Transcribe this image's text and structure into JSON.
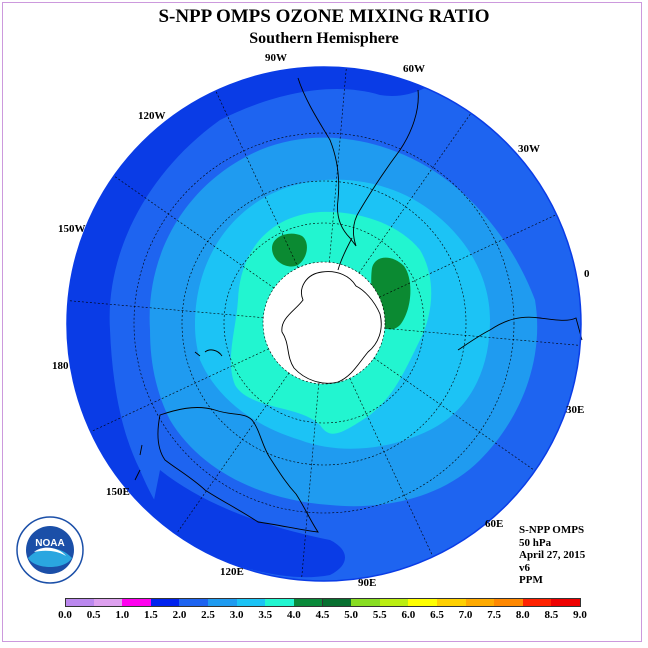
{
  "title": "S-NPP OMPS OZONE MIXING RATIO",
  "subtitle": "Southern Hemisphere",
  "map": {
    "projection": "south-polar-stereographic",
    "longitude_labels": [
      {
        "text": "90W"
      },
      {
        "text": "60W"
      },
      {
        "text": "30W"
      },
      {
        "text": "0"
      },
      {
        "text": "30E"
      },
      {
        "text": "60E"
      },
      {
        "text": "90E"
      },
      {
        "text": "120E"
      },
      {
        "text": "150E"
      },
      {
        "text": "180"
      },
      {
        "text": "150W"
      },
      {
        "text": "120W"
      }
    ],
    "colors": {
      "ocean_outer": "#0a3ce6",
      "band_2_0": "#1e64f0",
      "band_2_5": "#1f9bf0",
      "band_3_0": "#1cc3f5",
      "band_3_5": "#22f5d0",
      "band_4_0": "#0b8a32",
      "pole_cap": "#ffffff"
    }
  },
  "info": {
    "instrument": "S-NPP OMPS",
    "level": "50 hPa",
    "date": "April 27, 2015",
    "version": "v6",
    "units": "PPM"
  },
  "logo": {
    "name": "NOAA",
    "text": "NOAA"
  },
  "colorbar": {
    "labels": [
      "0.0",
      "0.5",
      "1.0",
      "1.5",
      "2.0",
      "2.5",
      "3.0",
      "3.5",
      "4.0",
      "4.5",
      "5.0",
      "5.5",
      "6.0",
      "6.5",
      "7.0",
      "7.5",
      "8.0",
      "8.5",
      "9.0"
    ],
    "colors": [
      "#bb88ee",
      "#dda0ee",
      "#ff00ee",
      "#0022ee",
      "#1e64f0",
      "#1f9bf0",
      "#1cc3f5",
      "#22f5d0",
      "#0a8a3a",
      "#087030",
      "#88dd22",
      "#bbee11",
      "#ffff00",
      "#ffd000",
      "#ffaa00",
      "#ff8800",
      "#ff2200",
      "#ee0000",
      "#885544"
    ]
  }
}
